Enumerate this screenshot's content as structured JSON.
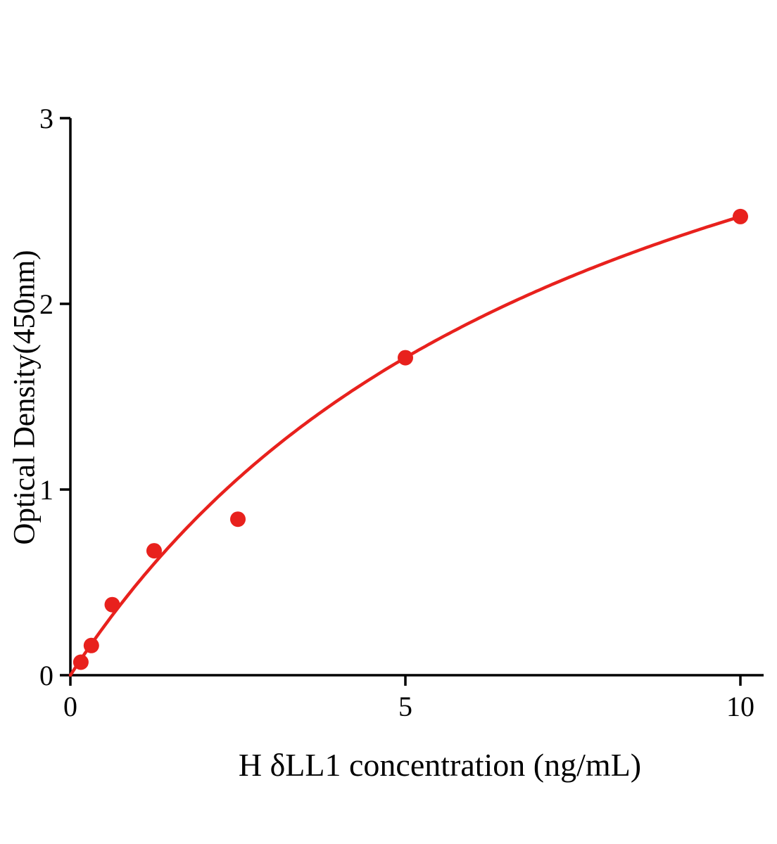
{
  "chart_data": {
    "type": "scatter",
    "title": "",
    "xlabel": "H δLL1 concentration (ng/mL)",
    "ylabel": "Optical Density(450nm)",
    "x": [
      0.156,
      0.3125,
      0.625,
      1.25,
      2.5,
      5,
      10
    ],
    "y": [
      0.07,
      0.16,
      0.38,
      0.67,
      0.84,
      1.71,
      2.47
    ],
    "xlim": [
      0,
      10
    ],
    "ylim": [
      0,
      3
    ],
    "xticks": [
      0,
      5,
      10
    ],
    "yticks": [
      0,
      1,
      2,
      3
    ],
    "curve": {
      "model": "y = a*x/(b+x)",
      "a": 4.446,
      "b": 8
    },
    "point_color": "#e8211d",
    "curve_color": "#e8211d",
    "axis_color": "#000000",
    "grid": false,
    "legend": false
  }
}
